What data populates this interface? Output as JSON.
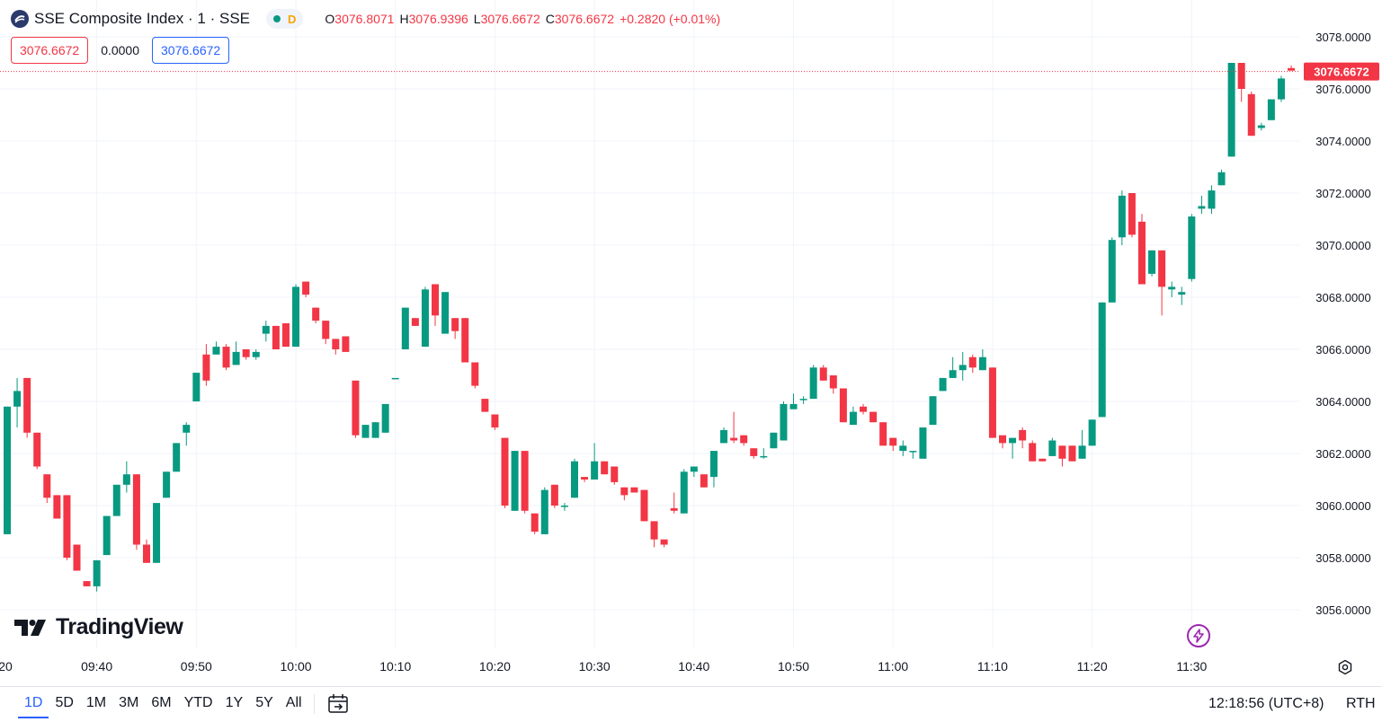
{
  "header": {
    "symbol_title": "SSE Composite Index · 1 · SSE",
    "status_letter": "D",
    "ohlc": [
      {
        "key": "O",
        "value": "3076.8071"
      },
      {
        "key": "H",
        "value": "3076.9396"
      },
      {
        "key": "L",
        "value": "3076.6672"
      },
      {
        "key": "C",
        "value": "3076.6672"
      }
    ],
    "change": "+0.2820 (+0.01%)"
  },
  "values_row": {
    "bid": "3076.6672",
    "spread": "0.0000",
    "ask": "3076.6672"
  },
  "brand": {
    "name": "TradingView"
  },
  "bottom_bar": {
    "ranges": [
      "1D",
      "5D",
      "1M",
      "3M",
      "6M",
      "YTD",
      "1Y",
      "5Y",
      "All"
    ],
    "active_range": "1D",
    "clock": "12:18:56 (UTC+8)",
    "session": "RTH"
  },
  "colors": {
    "up": "#089981",
    "down": "#f23645",
    "grid": "#f0f3fa",
    "accent": "#2962ff",
    "status_dot": "#089981",
    "status_letter": "#f7a600"
  },
  "icons": [
    "exchange-logo-icon",
    "calendar-range-icon",
    "lightning-icon",
    "settings-icon"
  ],
  "chart_data": {
    "type": "candlestick",
    "title": "SSE Composite Index · 1 · SSE",
    "price_axis": {
      "ticks": [
        "3056.0000",
        "3058.0000",
        "3060.0000",
        "3062.0000",
        "3064.0000",
        "3066.0000",
        "3068.0000",
        "3070.0000",
        "3072.0000",
        "3074.0000",
        "3076.0000",
        "3078.0000"
      ],
      "range": [
        3055.1,
        3078.0
      ]
    },
    "time_axis": {
      "labels": [
        "20",
        "09:40",
        "09:50",
        "10:00",
        "10:10",
        "10:20",
        "10:30",
        "10:40",
        "10:50",
        "11:00",
        "11:10",
        "11:20",
        "11:30"
      ],
      "label_minutes": [
        -1,
        40,
        50,
        60,
        70,
        80,
        90,
        100,
        110,
        120,
        130,
        140,
        150
      ]
    },
    "last_price": "3076.6672",
    "last_price_value": 3076.6672,
    "candles_start_minute": 31,
    "candles": [
      [
        3058.9,
        3063.8,
        3058.9,
        3063.8
      ],
      [
        3063.8,
        3064.9,
        3063.0,
        3064.4
      ],
      [
        3064.9,
        3064.9,
        3062.6,
        3062.8
      ],
      [
        3062.8,
        3062.8,
        3061.4,
        3061.5
      ],
      [
        3061.2,
        3061.2,
        3060.1,
        3060.3
      ],
      [
        3060.4,
        3060.4,
        3059.5,
        3059.5
      ],
      [
        3060.4,
        3060.4,
        3057.9,
        3058.0
      ],
      [
        3058.5,
        3058.5,
        3057.5,
        3057.5
      ],
      [
        3057.1,
        3057.1,
        3056.9,
        3056.9
      ],
      [
        3056.9,
        3057.9,
        3056.7,
        3057.9
      ],
      [
        3058.1,
        3059.6,
        3058.1,
        3059.6
      ],
      [
        3059.6,
        3060.8,
        3059.6,
        3060.8
      ],
      [
        3060.8,
        3061.7,
        3060.5,
        3061.2
      ],
      [
        3061.2,
        3061.2,
        3058.3,
        3058.5
      ],
      [
        3058.5,
        3058.7,
        3057.8,
        3057.8
      ],
      [
        3057.8,
        3060.1,
        3057.8,
        3060.1
      ],
      [
        3060.3,
        3061.3,
        3060.3,
        3061.3
      ],
      [
        3061.3,
        3062.4,
        3061.3,
        3062.4
      ],
      [
        3062.8,
        3063.2,
        3062.3,
        3063.1
      ],
      [
        3064.0,
        3065.1,
        3064.0,
        3065.1
      ],
      [
        3065.8,
        3066.2,
        3064.6,
        3064.8
      ],
      [
        3065.8,
        3066.3,
        3065.8,
        3066.1
      ],
      [
        3066.1,
        3066.2,
        3065.2,
        3065.3
      ],
      [
        3065.4,
        3066.3,
        3065.4,
        3065.9
      ],
      [
        3066.0,
        3066.0,
        3065.6,
        3065.7
      ],
      [
        3065.7,
        3066.0,
        3065.6,
        3065.9
      ],
      [
        3066.6,
        3067.1,
        3066.3,
        3066.9
      ],
      [
        3066.9,
        3066.9,
        3066.0,
        3066.0
      ],
      [
        3067.0,
        3067.0,
        3066.1,
        3066.1
      ],
      [
        3066.1,
        3068.5,
        3066.1,
        3068.4
      ],
      [
        3068.6,
        3068.6,
        3068.0,
        3068.1
      ],
      [
        3067.6,
        3067.6,
        3067.0,
        3067.1
      ],
      [
        3067.1,
        3067.1,
        3066.2,
        3066.4
      ],
      [
        3066.4,
        3066.4,
        3065.8,
        3066.0
      ],
      [
        3066.5,
        3066.5,
        3065.9,
        3065.9
      ],
      [
        3064.8,
        3064.8,
        3062.6,
        3062.7
      ],
      [
        3062.6,
        3063.1,
        3062.6,
        3063.1
      ],
      [
        3062.6,
        3063.2,
        3062.6,
        3063.2
      ],
      [
        3062.8,
        3063.9,
        3062.8,
        3063.9
      ],
      [
        3064.9,
        3064.9,
        3064.9,
        3064.9
      ],
      [
        3066.0,
        3067.6,
        3066.0,
        3067.6
      ],
      [
        3067.2,
        3067.2,
        3066.9,
        3066.9
      ],
      [
        3066.1,
        3068.4,
        3066.1,
        3068.3
      ],
      [
        3068.5,
        3068.5,
        3066.9,
        3067.3
      ],
      [
        3066.6,
        3068.2,
        3066.6,
        3068.2
      ],
      [
        3067.2,
        3067.2,
        3066.4,
        3066.7
      ],
      [
        3067.2,
        3067.2,
        3065.5,
        3065.5
      ],
      [
        3065.5,
        3065.5,
        3064.5,
        3064.6
      ],
      [
        3064.1,
        3064.1,
        3063.6,
        3063.6
      ],
      [
        3063.5,
        3063.5,
        3062.9,
        3063.0
      ],
      [
        3062.6,
        3062.6,
        3059.9,
        3060.0
      ],
      [
        3059.8,
        3062.1,
        3059.8,
        3062.1
      ],
      [
        3062.1,
        3062.1,
        3059.7,
        3059.8
      ],
      [
        3059.7,
        3059.7,
        3058.9,
        3059.0
      ],
      [
        3058.9,
        3060.7,
        3058.9,
        3060.6
      ],
      [
        3060.8,
        3060.8,
        3059.9,
        3060.0
      ],
      [
        3060.0,
        3060.1,
        3059.8,
        3060.0
      ],
      [
        3060.3,
        3061.8,
        3060.3,
        3061.7
      ],
      [
        3061.1,
        3061.1,
        3060.9,
        3061.0
      ],
      [
        3061.0,
        3062.4,
        3061.0,
        3061.7
      ],
      [
        3061.7,
        3061.7,
        3061.2,
        3061.2
      ],
      [
        3061.5,
        3061.5,
        3060.8,
        3060.9
      ],
      [
        3060.7,
        3060.7,
        3060.2,
        3060.4
      ],
      [
        3060.7,
        3060.7,
        3060.5,
        3060.5
      ],
      [
        3060.6,
        3060.6,
        3059.4,
        3059.4
      ],
      [
        3059.4,
        3059.4,
        3058.4,
        3058.7
      ],
      [
        3058.7,
        3058.7,
        3058.4,
        3058.5
      ],
      [
        3059.9,
        3060.5,
        3059.7,
        3059.8
      ],
      [
        3059.7,
        3061.4,
        3059.7,
        3061.3
      ],
      [
        3061.3,
        3061.5,
        3061.1,
        3061.5
      ],
      [
        3061.2,
        3061.2,
        3060.7,
        3060.7
      ],
      [
        3061.1,
        3062.1,
        3060.7,
        3062.1
      ],
      [
        3062.4,
        3063.0,
        3062.4,
        3062.9
      ],
      [
        3062.6,
        3063.6,
        3062.4,
        3062.5
      ],
      [
        3062.7,
        3062.7,
        3062.3,
        3062.4
      ],
      [
        3062.2,
        3062.2,
        3061.8,
        3061.9
      ],
      [
        3061.9,
        3062.2,
        3061.8,
        3061.9
      ],
      [
        3062.2,
        3062.8,
        3062.2,
        3062.8
      ],
      [
        3062.5,
        3064.0,
        3062.5,
        3063.9
      ],
      [
        3063.7,
        3064.3,
        3063.7,
        3063.9
      ],
      [
        3064.1,
        3064.2,
        3063.9,
        3064.1
      ],
      [
        3064.1,
        3065.4,
        3064.1,
        3065.3
      ],
      [
        3065.3,
        3065.4,
        3064.8,
        3064.8
      ],
      [
        3065.0,
        3065.0,
        3064.3,
        3064.5
      ],
      [
        3064.5,
        3064.5,
        3063.2,
        3063.2
      ],
      [
        3063.1,
        3063.8,
        3063.1,
        3063.6
      ],
      [
        3063.8,
        3063.9,
        3063.5,
        3063.6
      ],
      [
        3063.6,
        3063.6,
        3063.2,
        3063.2
      ],
      [
        3063.2,
        3063.2,
        3062.3,
        3062.3
      ],
      [
        3062.6,
        3062.6,
        3062.1,
        3062.3
      ],
      [
        3062.1,
        3062.5,
        3061.9,
        3062.3
      ],
      [
        3062.1,
        3062.1,
        3061.8,
        3062.1
      ],
      [
        3061.8,
        3063.0,
        3061.8,
        3063.0
      ],
      [
        3063.1,
        3064.2,
        3063.1,
        3064.2
      ],
      [
        3064.4,
        3064.9,
        3064.4,
        3064.9
      ],
      [
        3064.9,
        3065.7,
        3064.9,
        3065.2
      ],
      [
        3065.2,
        3065.9,
        3064.8,
        3065.4
      ],
      [
        3065.7,
        3065.8,
        3065.1,
        3065.3
      ],
      [
        3065.2,
        3066.0,
        3065.2,
        3065.7
      ],
      [
        3065.3,
        3065.3,
        3062.7,
        3062.6
      ],
      [
        3062.7,
        3062.7,
        3062.2,
        3062.4
      ],
      [
        3062.4,
        3062.4,
        3061.8,
        3062.6
      ],
      [
        3062.9,
        3063.0,
        3062.2,
        3062.5
      ],
      [
        3062.4,
        3062.5,
        3061.7,
        3061.7
      ],
      [
        3061.8,
        3061.8,
        3061.7,
        3061.7
      ],
      [
        3061.9,
        3062.6,
        3061.9,
        3062.5
      ],
      [
        3062.3,
        3062.3,
        3061.5,
        3061.8
      ],
      [
        3062.3,
        3062.3,
        3061.7,
        3061.7
      ],
      [
        3061.8,
        3062.9,
        3061.8,
        3062.3
      ],
      [
        3062.3,
        3063.3,
        3062.3,
        3063.3
      ],
      [
        3063.4,
        3067.8,
        3063.4,
        3067.8
      ],
      [
        3067.8,
        3070.3,
        3067.8,
        3070.2
      ],
      [
        3070.3,
        3072.1,
        3070.0,
        3071.9
      ],
      [
        3072.0,
        3072.0,
        3070.3,
        3070.4
      ],
      [
        3070.9,
        3071.2,
        3068.5,
        3068.5
      ],
      [
        3068.9,
        3069.8,
        3068.8,
        3069.8
      ],
      [
        3069.8,
        3069.8,
        3067.3,
        3068.4
      ],
      [
        3068.3,
        3068.6,
        3068.0,
        3068.4
      ],
      [
        3068.1,
        3068.4,
        3067.7,
        3068.2
      ],
      [
        3068.7,
        3071.2,
        3068.6,
        3071.1
      ],
      [
        3071.4,
        3071.9,
        3071.2,
        3071.5
      ],
      [
        3071.4,
        3072.3,
        3071.2,
        3072.1
      ],
      [
        3072.3,
        3072.9,
        3072.3,
        3072.8
      ],
      [
        3073.4,
        3077.0,
        3073.4,
        3077.0
      ],
      [
        3077.0,
        3077.0,
        3075.5,
        3076.0
      ],
      [
        3075.8,
        3075.9,
        3074.2,
        3074.2
      ],
      [
        3074.5,
        3074.7,
        3074.4,
        3074.6
      ],
      [
        3074.8,
        3075.6,
        3074.8,
        3075.6
      ],
      [
        3075.6,
        3076.5,
        3075.5,
        3076.4
      ],
      [
        3076.8,
        3076.9,
        3076.7,
        3076.7
      ]
    ]
  }
}
